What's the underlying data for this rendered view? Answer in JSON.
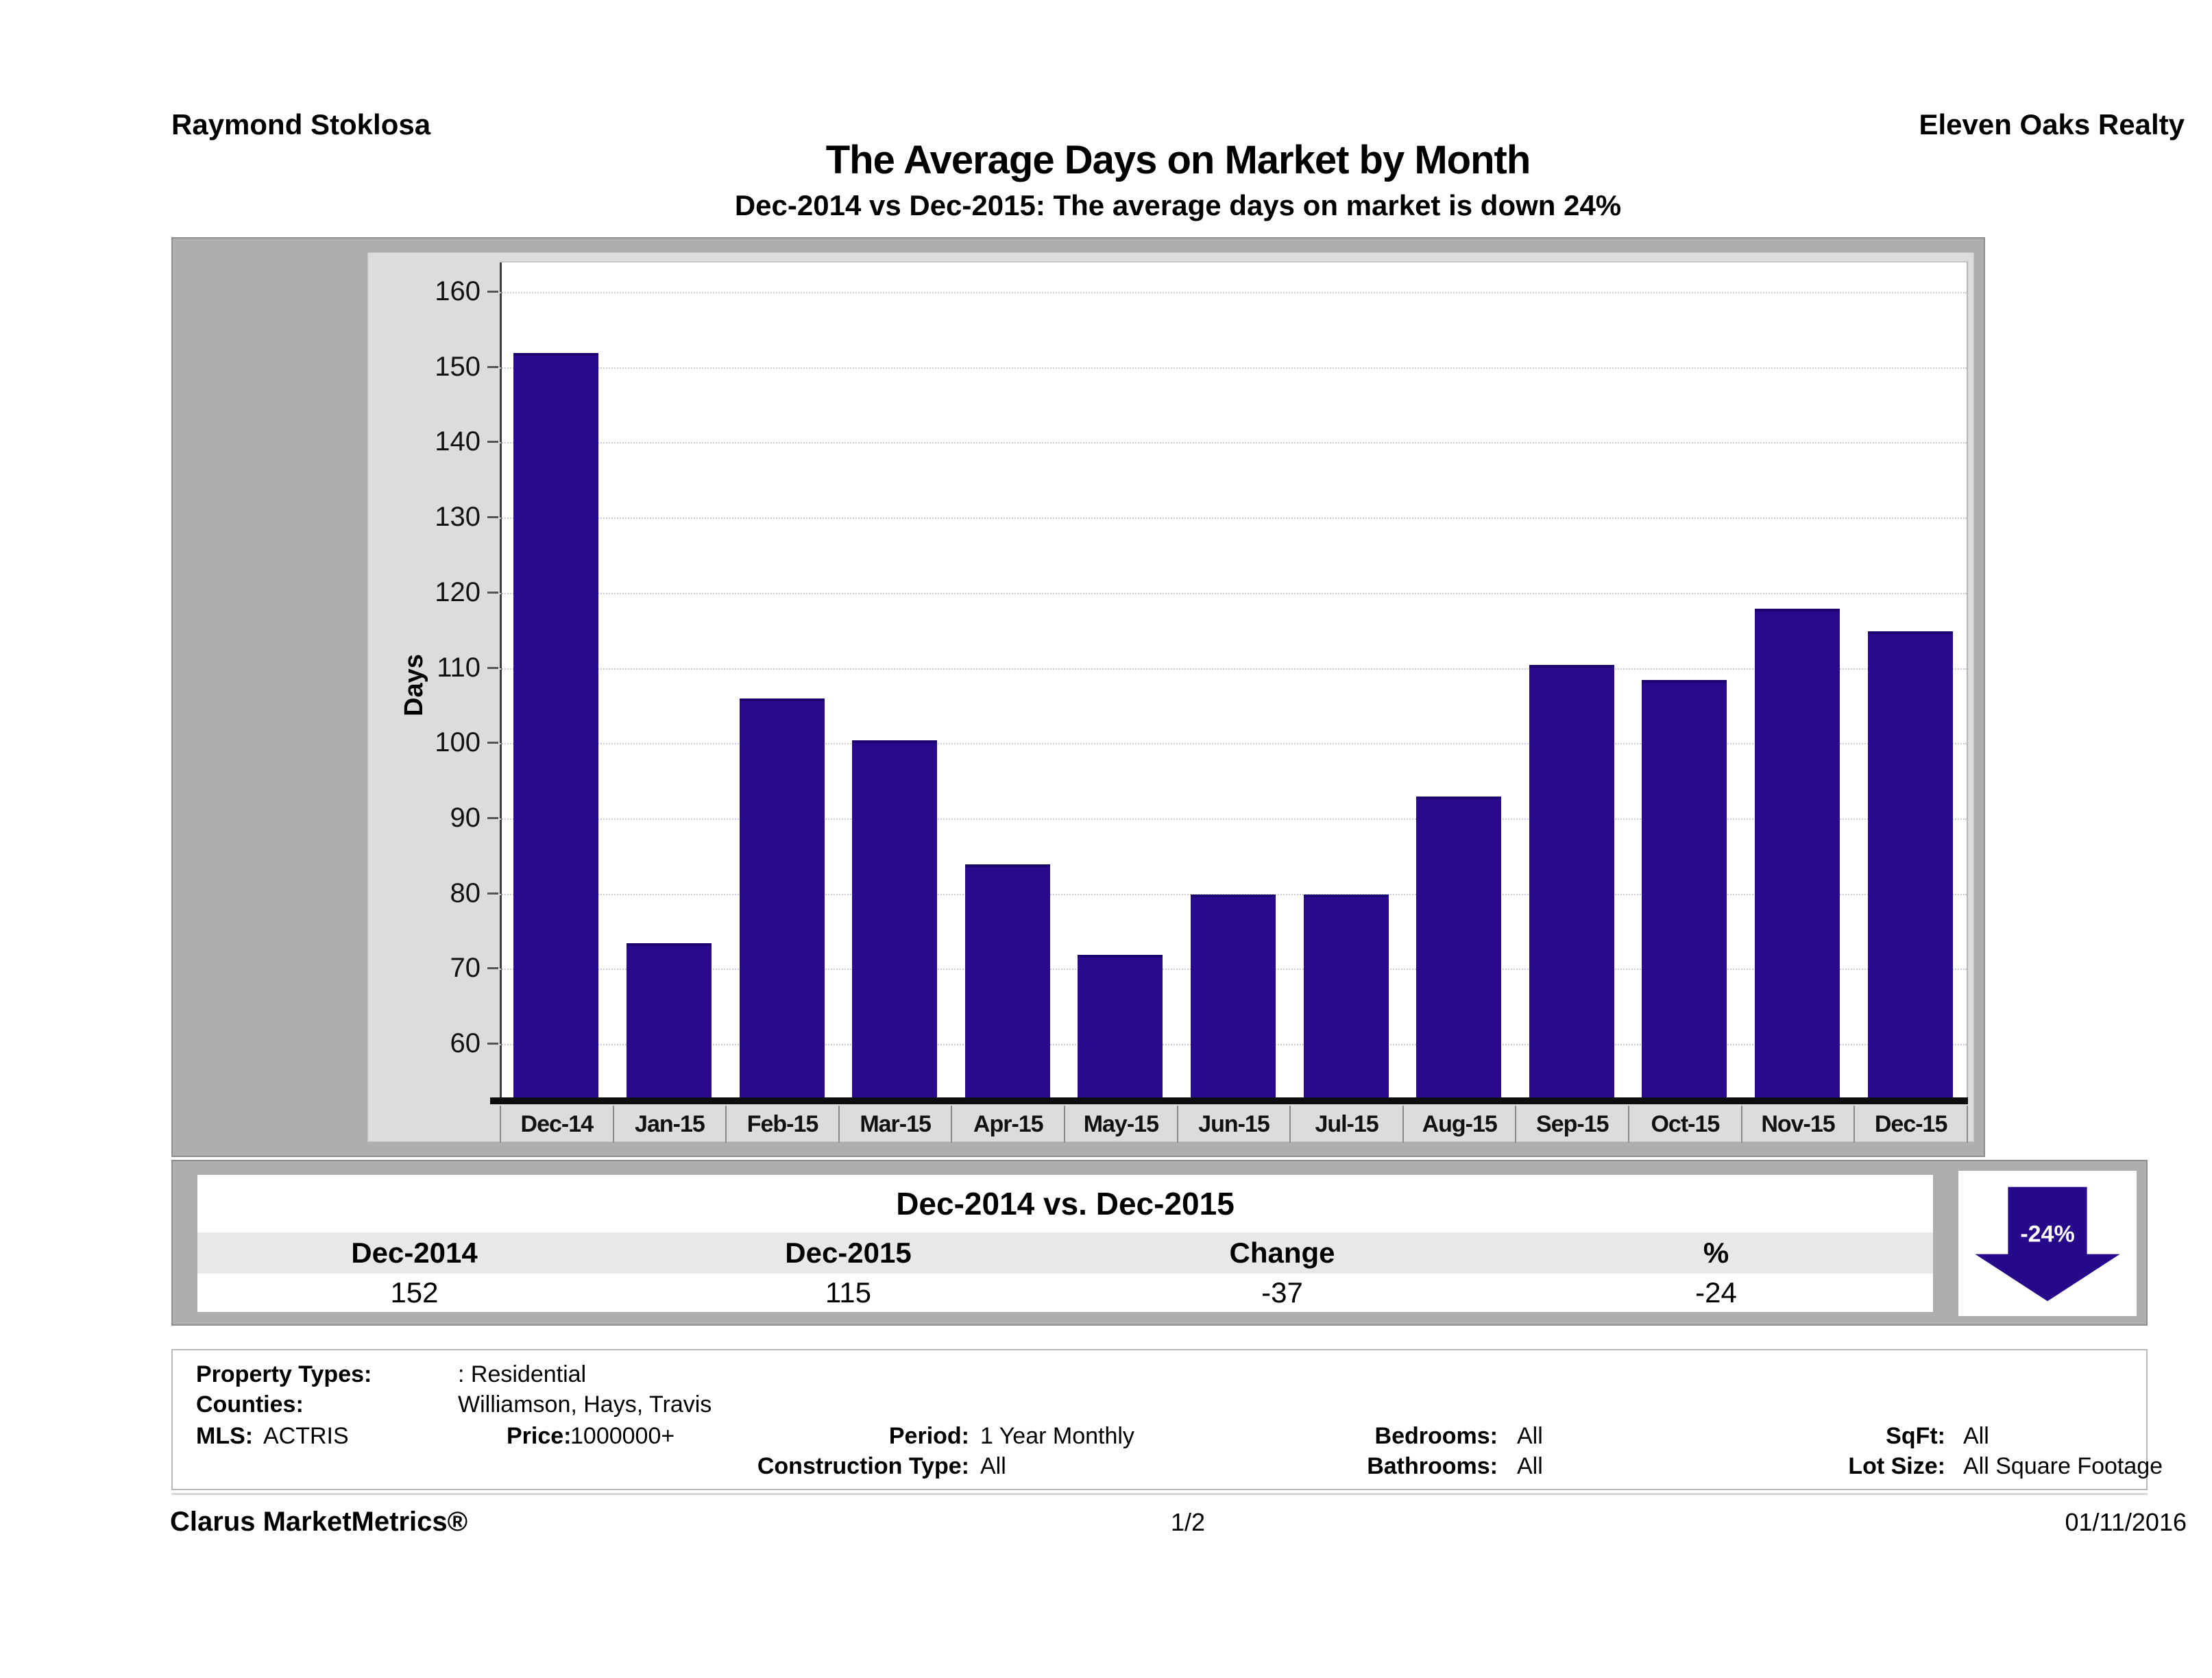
{
  "header": {
    "agent_name": "Raymond Stoklosa",
    "company_name": "Eleven Oaks Realty"
  },
  "title": "The Average Days on Market by Month",
  "subtitle": "Dec-2014 vs Dec-2015: The average days on market is down 24%",
  "chart_data": {
    "type": "bar",
    "title": "The Average Days on Market by Month",
    "xlabel": "",
    "ylabel": "Days",
    "categories": [
      "Dec-14",
      "Jan-15",
      "Feb-15",
      "Mar-15",
      "Apr-15",
      "May-15",
      "Jun-15",
      "Jul-15",
      "Aug-15",
      "Sep-15",
      "Oct-15",
      "Nov-15",
      "Dec-15"
    ],
    "values": [
      152,
      73.5,
      106,
      100.5,
      84,
      72,
      80,
      80,
      93,
      110.5,
      108.5,
      118,
      115
    ],
    "yticks": [
      60,
      70,
      80,
      90,
      100,
      110,
      120,
      130,
      140,
      150,
      160
    ],
    "ylim": [
      53,
      164
    ],
    "grid": "horizontal-dotted",
    "legend": "none",
    "bar_color": "#2a0a8c"
  },
  "comparison_table": {
    "title": "Dec-2014 vs. Dec-2015",
    "columns": [
      "Dec-2014",
      "Dec-2015",
      "Change",
      "%"
    ],
    "values": [
      "152",
      "115",
      "-37",
      "-24"
    ]
  },
  "change_badge": {
    "label": "-24%",
    "direction": "down",
    "color": "#28088a"
  },
  "filters": {
    "property_types_label": "Property Types:",
    "property_types_value": ": Residential",
    "counties_label": "Counties:",
    "counties_value": "Williamson, Hays, Travis",
    "mls_label": "MLS:",
    "mls_value": "ACTRIS",
    "price_label": "Price:",
    "price_value": "1000000+",
    "period_label": "Period:",
    "period_value": "1 Year Monthly",
    "construction_label": "Construction Type:",
    "construction_value": "All",
    "bedrooms_label": "Bedrooms:",
    "bedrooms_value": "All",
    "bathrooms_label": "Bathrooms:",
    "bathrooms_value": "All",
    "sqft_label": "SqFt:",
    "sqft_value": "All",
    "lot_size_label": "Lot Size:",
    "lot_size_value": "All Square Footage"
  },
  "footer": {
    "brand": "Clarus MarketMetrics®",
    "page": "1/2",
    "date": "01/11/2016"
  }
}
